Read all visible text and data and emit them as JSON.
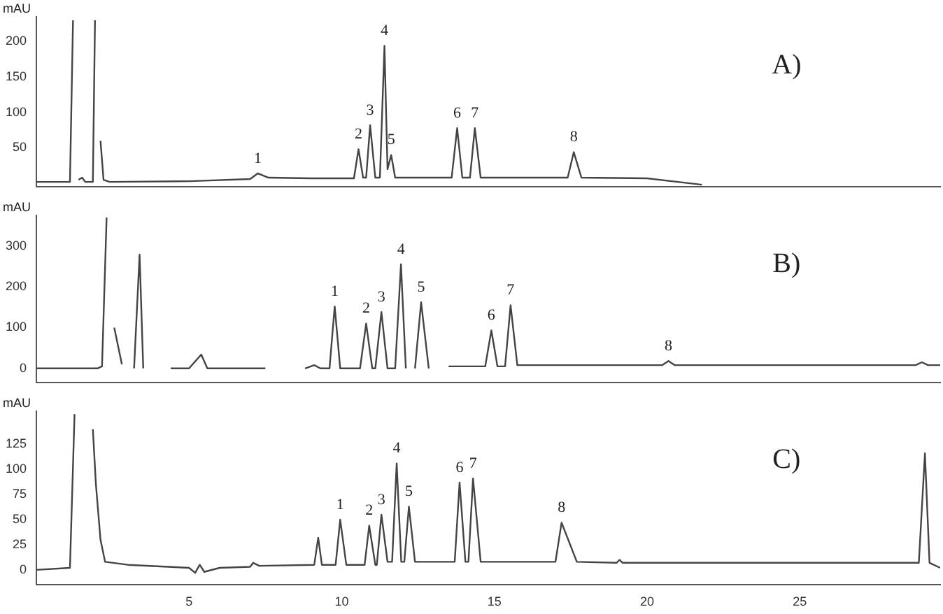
{
  "chart_data": [
    {
      "type": "line",
      "ylabel": "mAU",
      "xlim": [
        0,
        29.6
      ],
      "ylim": [
        -5,
        235
      ],
      "yticks": [
        50,
        100,
        150,
        200
      ],
      "tick_labels": "y",
      "grid": false,
      "legend": false,
      "marker": "none",
      "line_style": "solid",
      "annotations": [
        "A)",
        {
          "text": "1",
          "x": 7.25,
          "y": 14
        },
        {
          "text": "2",
          "x": 10.55,
          "y": 48
        },
        {
          "text": "3",
          "x": 10.93,
          "y": 82
        },
        {
          "text": "4",
          "x": 11.4,
          "y": 194
        },
        {
          "text": "5",
          "x": 11.62,
          "y": 40
        },
        {
          "text": "6",
          "x": 13.78,
          "y": 78
        },
        {
          "text": "7",
          "x": 14.36,
          "y": 78
        },
        {
          "text": "8",
          "x": 17.6,
          "y": 44
        }
      ],
      "series": [
        {
          "color": "#444444",
          "x": [
            0,
            1.1,
            1.2,
            1.3,
            1.38,
            1.5,
            1.6,
            1.85,
            1.92,
            2.0,
            2.1,
            2.2,
            2.4,
            5,
            7.0,
            7.25,
            7.6,
            9,
            10.4,
            10.55,
            10.7,
            10.8,
            10.93,
            11.1,
            11.25,
            11.4,
            11.5,
            11.62,
            11.75,
            13.6,
            13.78,
            13.95,
            14.2,
            14.36,
            14.55,
            17.4,
            17.6,
            17.85,
            20,
            21.8
          ],
          "values": [
            2,
            2,
            230,
            null,
            5,
            8,
            2,
            2,
            230,
            null,
            60,
            5,
            2,
            3,
            6,
            14,
            8,
            7,
            7,
            48,
            8,
            8,
            82,
            8,
            8,
            194,
            20,
            40,
            8,
            8,
            78,
            8,
            8,
            78,
            8,
            8,
            44,
            8,
            7,
            -2
          ]
        }
      ]
    },
    {
      "type": "line",
      "ylabel": "mAU",
      "xlim": [
        0,
        29.6
      ],
      "ylim": [
        -35,
        375
      ],
      "yticks": [
        0,
        100,
        200,
        300
      ],
      "tick_labels": "y",
      "grid": false,
      "legend": false,
      "marker": "none",
      "line_style": "solid",
      "annotations": [
        "B)",
        {
          "text": "1",
          "x": 9.77,
          "y": 152
        },
        {
          "text": "2",
          "x": 10.8,
          "y": 110
        },
        {
          "text": "3",
          "x": 11.3,
          "y": 138
        },
        {
          "text": "4",
          "x": 11.94,
          "y": 255
        },
        {
          "text": "5",
          "x": 12.6,
          "y": 162
        },
        {
          "text": "6",
          "x": 14.9,
          "y": 93
        },
        {
          "text": "7",
          "x": 15.53,
          "y": 155
        },
        {
          "text": "8",
          "x": 20.7,
          "y": 18
        }
      ],
      "series": [
        {
          "color": "#444444",
          "x": [
            0,
            2.0,
            2.15,
            2.3,
            2.42,
            2.55,
            2.8,
            3.0,
            3.2,
            3.38,
            3.5,
            3.6,
            4.4,
            5.0,
            5.4,
            5.6,
            7.5,
            8.0,
            8.8,
            9.1,
            9.3,
            9.6,
            9.77,
            9.95,
            10.6,
            10.8,
            11.0,
            11.1,
            11.3,
            11.5,
            11.75,
            11.94,
            12.1,
            12.2,
            12.4,
            12.6,
            12.85,
            13.1,
            13.5,
            14.7,
            14.9,
            15.1,
            15.35,
            15.53,
            15.75,
            20.5,
            20.7,
            20.9,
            28.8,
            29.0,
            29.2,
            29.6
          ],
          "values": [
            0,
            0,
            5,
            370,
            null,
            100,
            10,
            null,
            0,
            279,
            0,
            null,
            0,
            0,
            34,
            0,
            0,
            null,
            0,
            8,
            0,
            0,
            152,
            0,
            0,
            110,
            0,
            0,
            138,
            0,
            0,
            255,
            0,
            null,
            0,
            162,
            0,
            null,
            5,
            5,
            93,
            5,
            5,
            155,
            8,
            8,
            18,
            8,
            8,
            15,
            8,
            8
          ]
        }
      ]
    },
    {
      "type": "line",
      "ylabel": "mAU",
      "xlim": [
        0,
        29.6
      ],
      "ylim": [
        -15,
        158
      ],
      "xticks": [
        5,
        10,
        15,
        20,
        25
      ],
      "yticks": [
        0,
        25,
        50,
        75,
        100,
        125
      ],
      "grid": false,
      "legend": false,
      "marker": "none",
      "line_style": "solid",
      "annotations": [
        "C)",
        {
          "text": "1",
          "x": 9.95,
          "y": 50
        },
        {
          "text": "2",
          "x": 10.9,
          "y": 44
        },
        {
          "text": "3",
          "x": 11.3,
          "y": 55
        },
        {
          "text": "4",
          "x": 11.8,
          "y": 106
        },
        {
          "text": "5",
          "x": 12.2,
          "y": 63
        },
        {
          "text": "6",
          "x": 13.86,
          "y": 87
        },
        {
          "text": "7",
          "x": 14.3,
          "y": 91
        },
        {
          "text": "8",
          "x": 17.2,
          "y": 47
        }
      ],
      "series": [
        {
          "color": "#444444",
          "x": [
            0,
            1.1,
            1.25,
            1.7,
            1.85,
            1.95,
            2.1,
            2.25,
            3,
            5.0,
            5.2,
            5.35,
            5.5,
            6,
            7.0,
            7.1,
            7.3,
            9.1,
            9.23,
            9.35,
            9.8,
            9.95,
            10.15,
            10.75,
            10.9,
            11.1,
            11.15,
            11.3,
            11.5,
            11.65,
            11.8,
            11.95,
            12.05,
            12.2,
            12.4,
            13.7,
            13.86,
            14.05,
            14.15,
            14.3,
            14.55,
            17.0,
            17.2,
            17.7,
            19.0,
            19.1,
            19.2,
            28.9,
            29.1,
            29.25,
            29.6
          ],
          "values": [
            0,
            2,
            155,
            null,
            140,
            85,
            30,
            8,
            5,
            2,
            -3,
            5,
            -2,
            2,
            3,
            7,
            4,
            5,
            32,
            5,
            5,
            50,
            5,
            5,
            44,
            5,
            5,
            55,
            8,
            8,
            106,
            8,
            8,
            63,
            8,
            8,
            87,
            8,
            8,
            91,
            8,
            8,
            47,
            8,
            7,
            10,
            7,
            7,
            116,
            7,
            2
          ]
        }
      ]
    }
  ]
}
